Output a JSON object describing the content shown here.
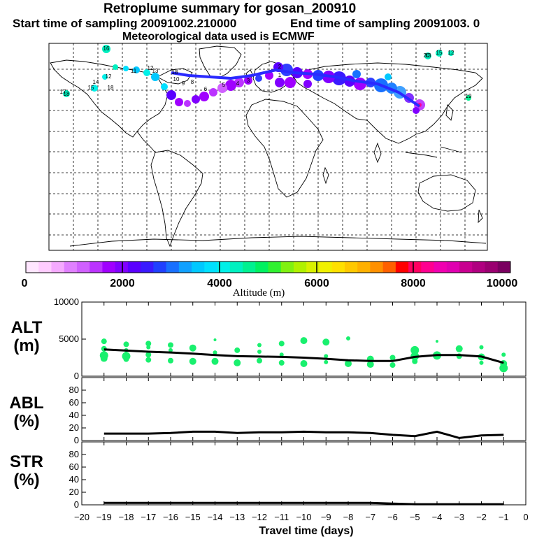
{
  "header": {
    "title": "Retroplume summary for gosan_200910",
    "start": "Start time of sampling 20091002.210000",
    "end": "End time of sampling 20091003.     0",
    "meteo": "Meteorological data used is ECMWF"
  },
  "colorbar": {
    "label": "Altitude (m)",
    "ticks": [
      "0",
      "2000",
      "4000",
      "6000",
      "8000",
      "10000"
    ],
    "colors": [
      "#ffe6ff",
      "#ffccff",
      "#f5aaff",
      "#e080ff",
      "#d060ff",
      "#bb33ff",
      "#a000ff",
      "#8000ff",
      "#5a00ff",
      "#3a1aff",
      "#2040ff",
      "#1870ff",
      "#10a0ff",
      "#00c8ff",
      "#00e0ff",
      "#00f0e8",
      "#00f0c0",
      "#00f090",
      "#00f060",
      "#30f030",
      "#80f010",
      "#b0f000",
      "#d8f000",
      "#f0f000",
      "#ffe000",
      "#ffc800",
      "#ffb000",
      "#ff9000",
      "#ff6000",
      "#ff0000",
      "#ff0060",
      "#ff0090",
      "#f000b0",
      "#e000b0",
      "#c80090",
      "#b00080",
      "#9a0070",
      "#7a0060"
    ]
  },
  "map_labels": [
    "16",
    "15",
    "12",
    "13",
    "14",
    "17",
    "18",
    "19",
    "12",
    "11",
    "10",
    "9",
    "8",
    "6",
    "5",
    "4",
    "3",
    "2",
    "1",
    "13",
    "15",
    "12",
    "18",
    "18",
    "20"
  ],
  "chart_data": [
    {
      "type": "scatter+line",
      "title": "ALT (m)",
      "ylabel_top": "ALT",
      "ylabel_bottom": "(m)",
      "ylim": [
        0,
        10000
      ],
      "yticks": [
        "0",
        "5000",
        "10000"
      ],
      "x": [
        -19,
        -18,
        -17,
        -16,
        -15,
        -14,
        -13,
        -12,
        -11,
        -10,
        -9,
        -8,
        -7,
        -6,
        -5,
        -4,
        -3,
        -2,
        -1
      ],
      "line": [
        3600,
        3450,
        3300,
        3200,
        3050,
        2850,
        2700,
        2650,
        2600,
        2500,
        2350,
        2150,
        2050,
        2050,
        2600,
        2850,
        2850,
        2650,
        1800
      ],
      "points": [
        {
          "x": -19,
          "y": 4700,
          "s": 4
        },
        {
          "x": -19,
          "y": 3700,
          "s": 4
        },
        {
          "x": -19,
          "y": 2800,
          "s": 6
        },
        {
          "x": -19,
          "y": 2400,
          "s": 5
        },
        {
          "x": -18,
          "y": 4300,
          "s": 4
        },
        {
          "x": -18,
          "y": 3500,
          "s": 3
        },
        {
          "x": -18,
          "y": 2700,
          "s": 6
        },
        {
          "x": -18,
          "y": 2300,
          "s": 4
        },
        {
          "x": -17,
          "y": 4400,
          "s": 4
        },
        {
          "x": -17,
          "y": 3900,
          "s": 3
        },
        {
          "x": -17,
          "y": 2900,
          "s": 4
        },
        {
          "x": -17,
          "y": 2200,
          "s": 4
        },
        {
          "x": -16,
          "y": 4200,
          "s": 4
        },
        {
          "x": -16,
          "y": 3500,
          "s": 3
        },
        {
          "x": -16,
          "y": 2100,
          "s": 4
        },
        {
          "x": -15,
          "y": 3800,
          "s": 5
        },
        {
          "x": -15,
          "y": 2000,
          "s": 5
        },
        {
          "x": -14,
          "y": 4900,
          "s": 2
        },
        {
          "x": -14,
          "y": 3200,
          "s": 3
        },
        {
          "x": -14,
          "y": 2000,
          "s": 5
        },
        {
          "x": -13,
          "y": 3500,
          "s": 4
        },
        {
          "x": -13,
          "y": 1800,
          "s": 5
        },
        {
          "x": -12,
          "y": 4200,
          "s": 3
        },
        {
          "x": -12,
          "y": 3300,
          "s": 3
        },
        {
          "x": -12,
          "y": 2100,
          "s": 4
        },
        {
          "x": -11,
          "y": 4400,
          "s": 4
        },
        {
          "x": -11,
          "y": 2900,
          "s": 3
        },
        {
          "x": -11,
          "y": 1800,
          "s": 4
        },
        {
          "x": -10,
          "y": 4800,
          "s": 5
        },
        {
          "x": -10,
          "y": 1700,
          "s": 5
        },
        {
          "x": -9,
          "y": 4600,
          "s": 5
        },
        {
          "x": -9,
          "y": 2700,
          "s": 3
        },
        {
          "x": -9,
          "y": 1900,
          "s": 3
        },
        {
          "x": -8,
          "y": 5100,
          "s": 3
        },
        {
          "x": -8,
          "y": 1700,
          "s": 5
        },
        {
          "x": -7,
          "y": 2300,
          "s": 5
        },
        {
          "x": -7,
          "y": 1600,
          "s": 5
        },
        {
          "x": -6,
          "y": 2500,
          "s": 4
        },
        {
          "x": -6,
          "y": 1500,
          "s": 4
        },
        {
          "x": -5,
          "y": 3500,
          "s": 6
        },
        {
          "x": -5,
          "y": 2700,
          "s": 6
        },
        {
          "x": -5,
          "y": 2000,
          "s": 4
        },
        {
          "x": -4,
          "y": 4700,
          "s": 2
        },
        {
          "x": -4,
          "y": 2800,
          "s": 6
        },
        {
          "x": -3,
          "y": 3700,
          "s": 5
        },
        {
          "x": -3,
          "y": 2700,
          "s": 4
        },
        {
          "x": -2,
          "y": 3900,
          "s": 3
        },
        {
          "x": -2,
          "y": 2600,
          "s": 5
        },
        {
          "x": -2,
          "y": 1800,
          "s": 3
        },
        {
          "x": -1,
          "y": 2900,
          "s": 3
        },
        {
          "x": -1,
          "y": 1700,
          "s": 5
        },
        {
          "x": -1,
          "y": 1100,
          "s": 6
        }
      ]
    },
    {
      "type": "line",
      "title": "ABL (%)",
      "ylabel_top": "ABL",
      "ylabel_bottom": "(%)",
      "ylim": [
        0,
        100
      ],
      "yticks": [
        "0",
        "20",
        "40",
        "60",
        "80"
      ],
      "x": [
        -19,
        -18,
        -17,
        -16,
        -15,
        -14,
        -13,
        -12,
        -11,
        -10,
        -9,
        -8,
        -7,
        -6,
        -5,
        -4,
        -3,
        -2,
        -1
      ],
      "values": [
        11,
        11,
        11,
        12,
        14,
        14,
        12,
        13,
        13,
        14,
        13,
        13,
        12,
        9,
        7,
        14,
        4,
        8,
        9
      ]
    },
    {
      "type": "line",
      "title": "STR (%)",
      "ylabel_top": "STR",
      "ylabel_bottom": "(%)",
      "ylim": [
        0,
        100
      ],
      "yticks": [
        "0",
        "20",
        "40",
        "60",
        "80"
      ],
      "x": [
        -19,
        -18,
        -17,
        -16,
        -15,
        -14,
        -13,
        -12,
        -11,
        -10,
        -9,
        -8,
        -7,
        -6,
        -5,
        -4,
        -3,
        -2,
        -1
      ],
      "values": [
        3,
        3,
        3,
        3,
        3,
        3,
        3,
        3,
        3,
        3,
        3,
        3,
        3,
        2,
        1,
        1,
        1,
        1,
        1
      ]
    }
  ],
  "xaxis": {
    "label": "Travel time (days)",
    "ticks": [
      "−20",
      "−19",
      "−18",
      "−17",
      "−16",
      "−15",
      "−14",
      "−13",
      "−12",
      "−11",
      "−10",
      "−9",
      "−8",
      "−7",
      "−6",
      "−5",
      "−4",
      "−3",
      "−2",
      "−1",
      "0"
    ]
  },
  "styles": {
    "marker_color": "#19f06e",
    "line_color": "#000000"
  }
}
